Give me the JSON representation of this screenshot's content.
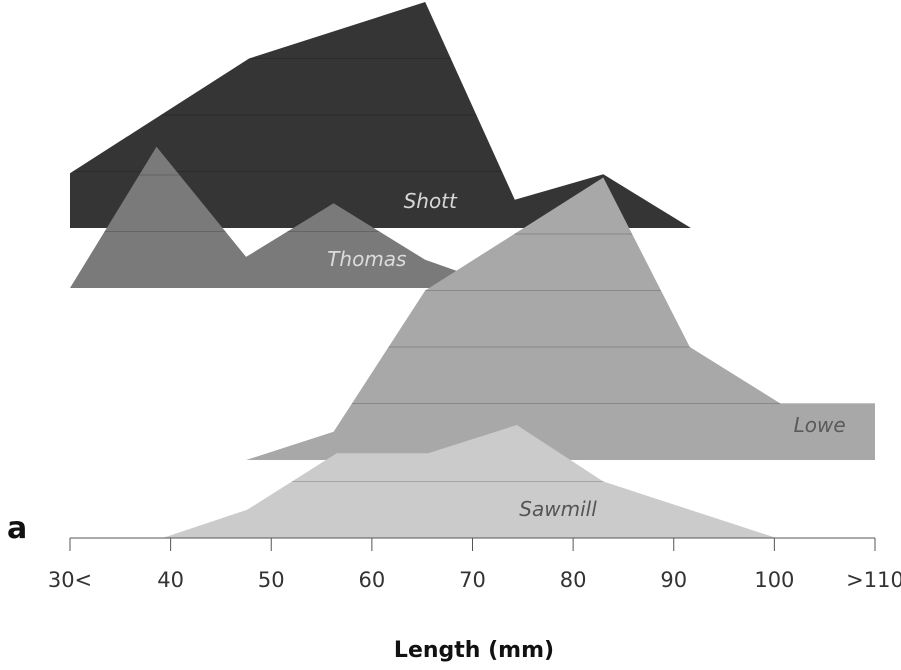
{
  "panel_letter": "a",
  "chart_data": {
    "type": "area",
    "subtype": "stacked ridgeline",
    "xlabel": "Length (mm)",
    "xlim": [
      30,
      110
    ],
    "x_ticks": [
      30,
      40,
      50,
      60,
      70,
      80,
      90,
      100,
      110
    ],
    "x_tick_labels": [
      "30<",
      "40",
      "50",
      "60",
      "70",
      "80",
      "90",
      "100",
      ">110"
    ],
    "grid": "horizontal ridge lines",
    "legend": "none",
    "series": [
      {
        "name": "Shott",
        "color": "#353535",
        "label_color": "#d8d8d8",
        "label_x": 65.8,
        "height_in_rows": 4.0,
        "points": [
          [
            30,
            0.97
          ],
          [
            47.8,
            3.0
          ],
          [
            65.3,
            4.0
          ],
          [
            74.2,
            0.5
          ],
          [
            83,
            0.95
          ],
          [
            91.7,
            0.0
          ]
        ]
      },
      {
        "name": "Thomas",
        "color": "#7a7a7a",
        "label_color": "#dcdcdc",
        "label_x": 59.5,
        "height_in_rows": 2.5,
        "points": [
          [
            30,
            0.0
          ],
          [
            38.6,
            2.5
          ],
          [
            47.5,
            0.55
          ],
          [
            56.2,
            1.5
          ],
          [
            65.3,
            0.5
          ],
          [
            68.5,
            0.3
          ],
          [
            69.5,
            0.0
          ]
        ]
      },
      {
        "name": "Lowe",
        "color": "#a8a8a8",
        "label_color": "#5a5a5a",
        "label_x": 104.5,
        "height_in_rows": 5.0,
        "points": [
          [
            47.5,
            0.0
          ],
          [
            56.2,
            0.5
          ],
          [
            65.3,
            3.0
          ],
          [
            83,
            5.0
          ],
          [
            91.6,
            2.0
          ],
          [
            100.6,
            1.0
          ],
          [
            110,
            1.0
          ],
          [
            110,
            0.0
          ]
        ]
      },
      {
        "name": "Sawmill",
        "color": "#cbcbcb",
        "label_color": "#555555",
        "label_x": 78.5,
        "height_in_rows": 2.0,
        "points": [
          [
            39.2,
            0.0
          ],
          [
            47.6,
            0.5
          ],
          [
            56.5,
            1.5
          ],
          [
            65.6,
            1.5
          ],
          [
            74.4,
            2.0
          ],
          [
            83,
            1.0
          ],
          [
            100.2,
            0.0
          ]
        ]
      }
    ]
  }
}
